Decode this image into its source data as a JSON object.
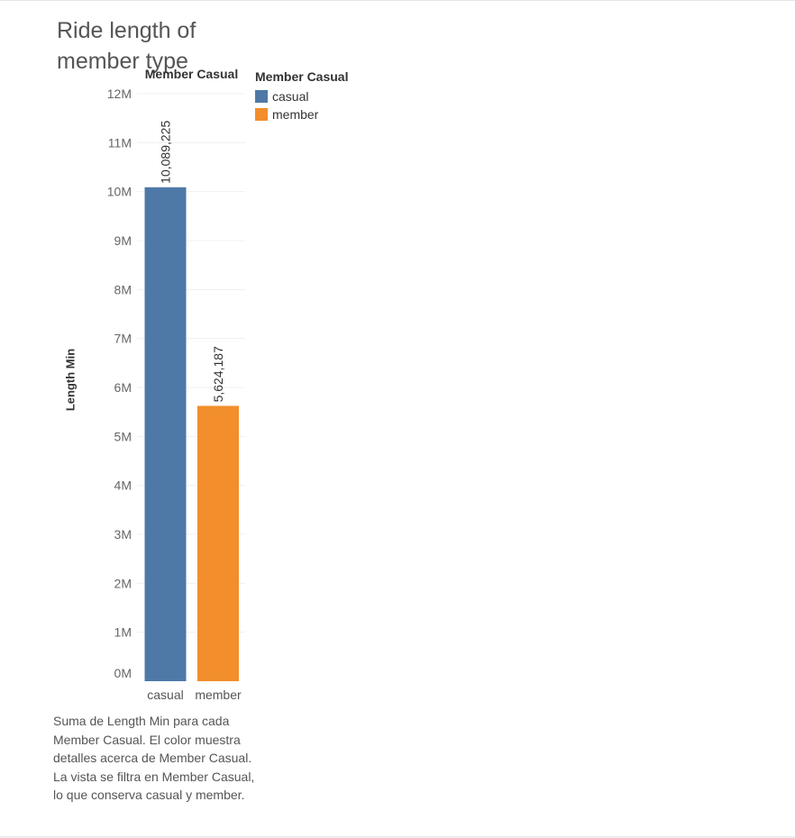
{
  "title_lines": [
    "Ride length of",
    "member type"
  ],
  "column_header": "Member Casual",
  "legend": {
    "title": "Member Casual",
    "items": [
      {
        "label": "casual",
        "color": "#4e79a7"
      },
      {
        "label": "member",
        "color": "#f28e2b"
      }
    ]
  },
  "caption": "Suma de Length Min para cada Member Casual.  El color muestra detalles acerca de Member Casual. La vista se filtra en Member Casual, lo que conserva casual y member.",
  "chart_data": {
    "type": "bar",
    "title": "Ride length of member type",
    "ylabel": "Length Min",
    "xlabel": "",
    "categories": [
      "casual",
      "member"
    ],
    "values": [
      10089225,
      5624187
    ],
    "value_labels": [
      "10,089,225",
      "5,624,187"
    ],
    "colors": [
      "#4e79a7",
      "#f28e2b"
    ],
    "ylim": [
      0,
      12000000
    ],
    "y_ticks": [
      {
        "value": 0,
        "label": "0M"
      },
      {
        "value": 1000000,
        "label": "1M"
      },
      {
        "value": 2000000,
        "label": "2M"
      },
      {
        "value": 3000000,
        "label": "3M"
      },
      {
        "value": 4000000,
        "label": "4M"
      },
      {
        "value": 5000000,
        "label": "5M"
      },
      {
        "value": 6000000,
        "label": "6M"
      },
      {
        "value": 7000000,
        "label": "7M"
      },
      {
        "value": 8000000,
        "label": "8M"
      },
      {
        "value": 9000000,
        "label": "9M"
      },
      {
        "value": 10000000,
        "label": "10M"
      },
      {
        "value": 11000000,
        "label": "11M"
      },
      {
        "value": 12000000,
        "label": "12M"
      }
    ],
    "grid": true,
    "legend_position": "right"
  }
}
